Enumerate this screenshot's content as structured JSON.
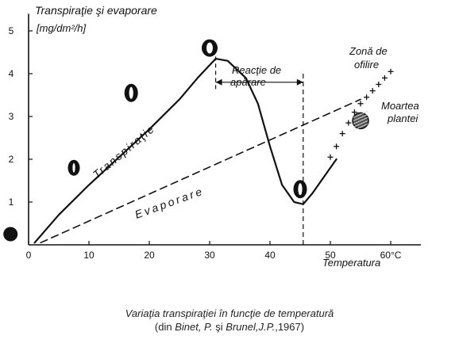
{
  "chart_data": {
    "type": "line",
    "ylabel": "Transpiraţie şi evaporare",
    "yunit": "[mg/dm²/h]",
    "xlabel": "Temperatura",
    "xlim": [
      0,
      65
    ],
    "ylim": [
      0,
      5.4
    ],
    "x_ticks": [
      {
        "v": 0,
        "label": "0"
      },
      {
        "v": 10,
        "label": "10"
      },
      {
        "v": 20,
        "label": "20"
      },
      {
        "v": 30,
        "label": "30"
      },
      {
        "v": 40,
        "label": "40"
      },
      {
        "v": 50,
        "label": "50"
      },
      {
        "v": 60,
        "label": "60°C"
      }
    ],
    "y_ticks": [
      {
        "v": 1,
        "label": "1"
      },
      {
        "v": 2,
        "label": "2"
      },
      {
        "v": 3,
        "label": "3"
      },
      {
        "v": 4,
        "label": "4"
      },
      {
        "v": 5,
        "label": "5"
      }
    ],
    "series": [
      {
        "name": "Transpiraţie",
        "style": "solid",
        "points": [
          [
            1,
            0.05
          ],
          [
            5,
            0.7
          ],
          [
            10,
            1.4
          ],
          [
            15,
            2.05
          ],
          [
            20,
            2.7
          ],
          [
            25,
            3.4
          ],
          [
            28,
            3.9
          ],
          [
            31,
            4.35
          ],
          [
            33,
            4.3
          ],
          [
            36,
            3.9
          ],
          [
            38,
            3.3
          ],
          [
            40,
            2.3
          ],
          [
            42,
            1.4
          ],
          [
            44,
            1.0
          ],
          [
            45.5,
            0.95
          ],
          [
            47,
            1.2
          ],
          [
            49,
            1.6
          ],
          [
            51,
            2.0
          ]
        ]
      },
      {
        "name": "Evaporare",
        "style": "dashed",
        "points": [
          [
            2,
            0.05
          ],
          [
            55,
            3.4
          ]
        ]
      }
    ],
    "wilting_points": [
      [
        50,
        2.05
      ],
      [
        51,
        2.3
      ],
      [
        52,
        2.6
      ],
      [
        53,
        2.85
      ],
      [
        54,
        3.1
      ],
      [
        55,
        3.3
      ],
      [
        56,
        3.45
      ],
      [
        57,
        3.6
      ],
      [
        58,
        3.75
      ],
      [
        59,
        3.9
      ],
      [
        60,
        4.05
      ]
    ],
    "stomata_markers": [
      {
        "x": -3,
        "y": 0.25,
        "state": "closed"
      },
      {
        "x": 7.5,
        "y": 1.8,
        "state": "slightly-open"
      },
      {
        "x": 17,
        "y": 3.55,
        "state": "open"
      },
      {
        "x": 30,
        "y": 4.6,
        "state": "wide-open"
      },
      {
        "x": 45,
        "y": 1.3,
        "state": "open"
      },
      {
        "x": 55,
        "y": 2.9,
        "state": "dead"
      }
    ],
    "annotations": {
      "reaction_label_1": "Reacţie de",
      "reaction_label_2": "apărare",
      "reaction_range": [
        31,
        45.5
      ],
      "reaction_y": 3.8,
      "wilting_zone_1": "Zonă de",
      "wilting_zone_2": "ofilire",
      "plant_death_1": "Moartea",
      "plant_death_2": "plantei"
    },
    "grid": false,
    "legend": "none"
  },
  "caption": {
    "line1": "Variaţia transpiraţiei în funcţie de temperatură",
    "line2_prefix": "(din ",
    "author1": "Binet, P.",
    "line2_mid": " şi ",
    "author2": "Brunel,J.P.",
    "line2_suffix": ",1967)"
  }
}
